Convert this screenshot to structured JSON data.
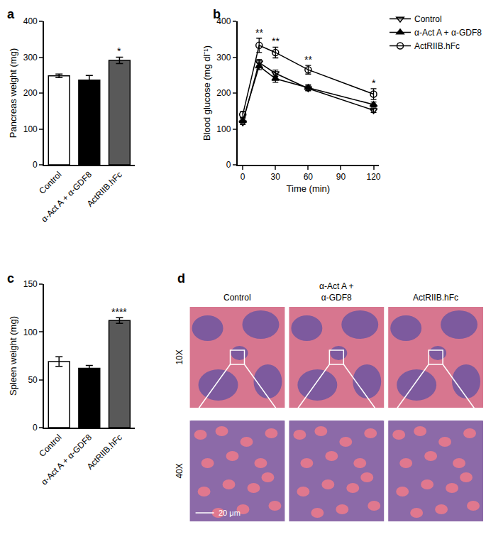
{
  "panel_labels": [
    "a",
    "b",
    "c",
    "d"
  ],
  "chart_data": [
    {
      "type": "bar",
      "y_label": "Pancreas weight (mg)",
      "categories": [
        "Control",
        "α-Act A + α-GDF8",
        "ActRIIB.hFc"
      ],
      "values": [
        248,
        236,
        291
      ],
      "errors": [
        5,
        13,
        9
      ],
      "colors": [
        "#ffffff",
        "#000000",
        "#595959"
      ],
      "significance": [
        null,
        null,
        "*"
      ],
      "ylim": [
        0,
        400
      ],
      "yticks": [
        0,
        100,
        200,
        300,
        400
      ],
      "grid": false
    },
    {
      "type": "line",
      "x_label": "Time (min)",
      "y_label": "Blood glucose (mg dl⁻¹)",
      "x": [
        0,
        15,
        30,
        60,
        120
      ],
      "xlim": [
        -5,
        125
      ],
      "xticks": [
        0,
        30,
        60,
        90,
        120
      ],
      "ylim": [
        0,
        400
      ],
      "yticks": [
        0,
        100,
        200,
        300,
        400
      ],
      "grid": false,
      "legend": "right",
      "series": [
        {
          "name": "Control",
          "color": "#000000",
          "marker": "triangle-down-open",
          "values": [
            118,
            285,
            255,
            213,
            152
          ],
          "errors": [
            6,
            9,
            9,
            7,
            6
          ]
        },
        {
          "name": "α-Act A + α-GDF8",
          "color": "#000000",
          "marker": "triangle-up",
          "values": [
            123,
            275,
            240,
            215,
            168
          ],
          "errors": [
            6,
            10,
            10,
            8,
            7
          ]
        },
        {
          "name": "ActRIIB.hFc",
          "color": "#000000",
          "marker": "circle-open",
          "values": [
            140,
            333,
            313,
            265,
            197
          ],
          "errors": [
            8,
            20,
            15,
            12,
            15
          ],
          "significance": [
            null,
            "**",
            "**",
            "**",
            "*"
          ]
        }
      ]
    },
    {
      "type": "bar",
      "y_label": "Spleen weight (mg)",
      "categories": [
        "Control",
        "α-Act A + α-GDF8",
        "ActRIIB.hFc"
      ],
      "values": [
        69,
        62,
        112
      ],
      "errors": [
        5,
        3,
        3
      ],
      "colors": [
        "#ffffff",
        "#000000",
        "#595959"
      ],
      "significance": [
        null,
        null,
        "****"
      ],
      "ylim": [
        0,
        150
      ],
      "yticks": [
        0,
        50,
        100,
        150
      ],
      "grid": false
    }
  ],
  "histology": {
    "columns": [
      [
        "Control"
      ],
      [
        "α-Act A +",
        "α-GDF8"
      ],
      [
        "ActRIIB.hFc"
      ]
    ],
    "rows": [
      "10X",
      "40X"
    ],
    "scale_bar": "20 μm"
  }
}
